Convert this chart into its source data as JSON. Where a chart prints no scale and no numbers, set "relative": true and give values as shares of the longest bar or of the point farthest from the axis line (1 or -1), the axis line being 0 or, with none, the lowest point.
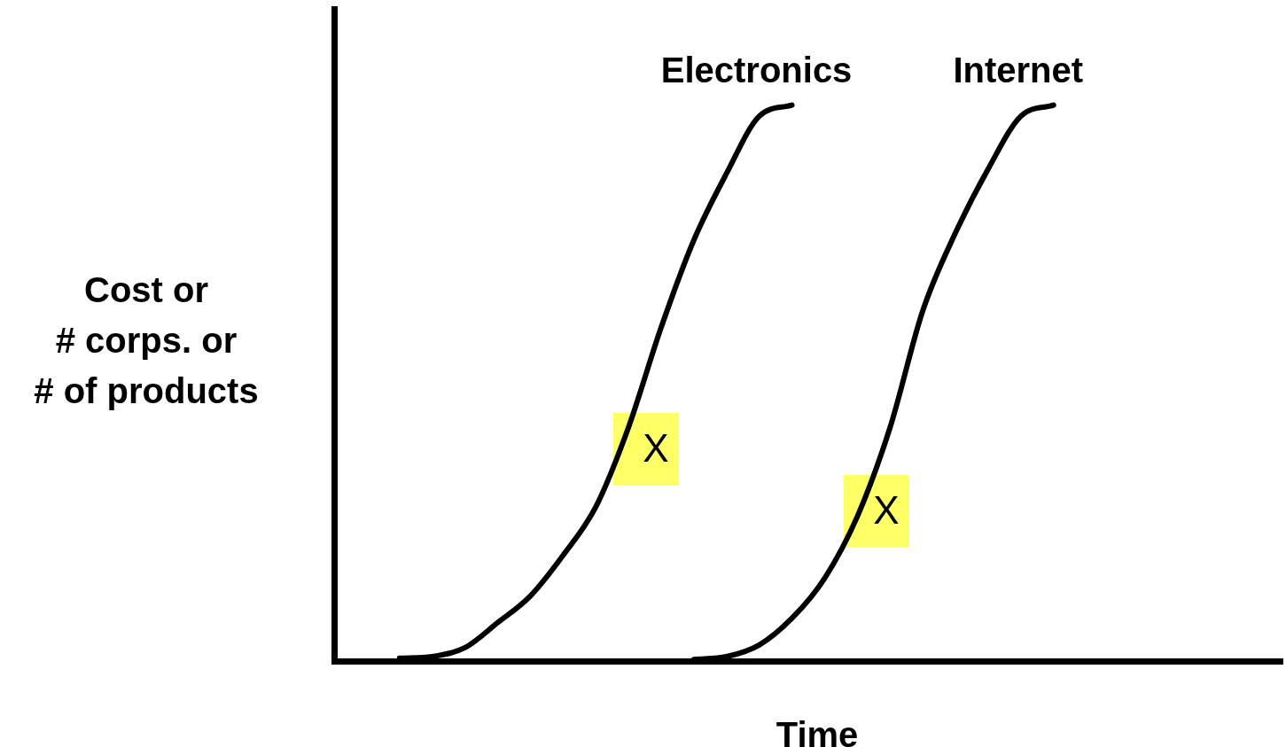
{
  "chart_data": {
    "type": "line",
    "relative": true,
    "xlabel": "Time",
    "ylabel": "Cost or\n# corps. or\n# of products",
    "categories": [
      null,
      null,
      null,
      null,
      null,
      null,
      null,
      null,
      null,
      null,
      null,
      null,
      null,
      null,
      null,
      null,
      null,
      null,
      null,
      null,
      null,
      null,
      null,
      null,
      null,
      null,
      null,
      null,
      null,
      null
    ],
    "series": [
      {
        "name": "Electronics",
        "color": "#000000",
        "values": [
          null,
          null,
          0.005,
          0.008,
          0.024,
          0.069,
          0.117,
          0.19,
          0.277,
          0.42,
          0.6,
          0.757,
          0.877,
          0.98,
          1,
          null,
          null,
          null,
          null,
          null,
          null,
          null,
          null,
          null,
          null,
          null,
          null,
          null,
          null,
          null
        ]
      },
      {
        "name": "Internet",
        "color": "#000000",
        "values": [
          null,
          null,
          null,
          null,
          null,
          null,
          null,
          null,
          null,
          null,
          null,
          0.003,
          0.008,
          0.029,
          0.077,
          0.149,
          0.26,
          0.42,
          0.63,
          0.77,
          0.885,
          0.98,
          1,
          null,
          null,
          null,
          null,
          null,
          null,
          null
        ]
      }
    ],
    "annotations": [
      "X",
      "X"
    ],
    "marker": "none",
    "line_style": "solid",
    "legend": false
  }
}
